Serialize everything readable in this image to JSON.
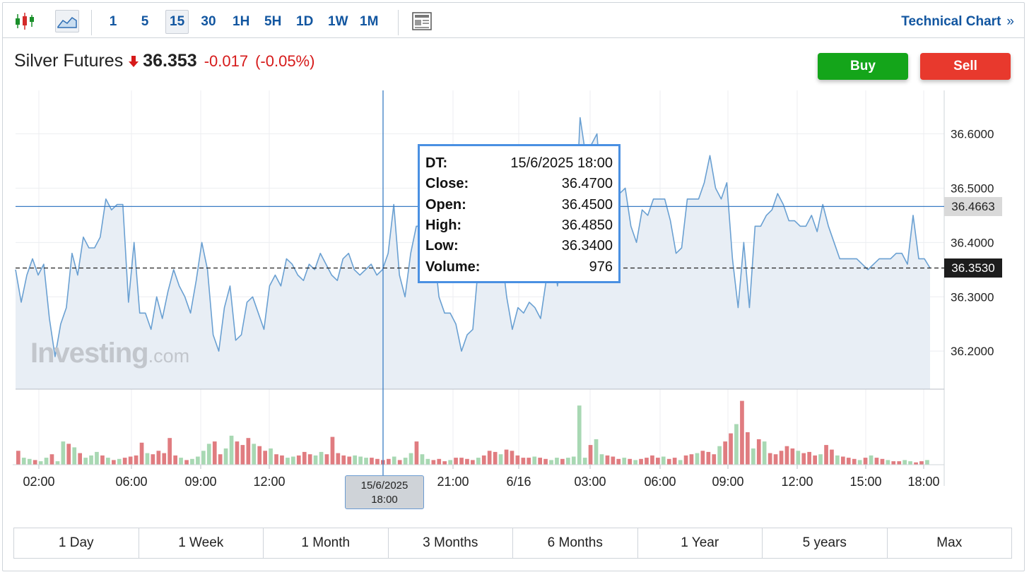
{
  "toolbar": {
    "intervals": [
      "1",
      "5",
      "15",
      "30",
      "1H",
      "5H",
      "1D",
      "1W",
      "1M"
    ],
    "active_interval": "15",
    "technical_chart_label": "Technical Chart",
    "technical_chart_chevron": "»"
  },
  "quote": {
    "name": "Silver Futures",
    "price": "36.353",
    "change": "-0.017",
    "change_pct": "(-0.05%)",
    "direction": "down"
  },
  "actions": {
    "buy_label": "Buy",
    "sell_label": "Sell"
  },
  "colors": {
    "accent": "#1256a0",
    "up": "#14a51a",
    "down": "#e8392d",
    "line": "#6aa0d2",
    "area": "#e8eef5",
    "vol_up": "#a8d8b3",
    "vol_down": "#e07c80"
  },
  "watermark": {
    "brand": "Investing",
    "suffix": ".com"
  },
  "tooltip": {
    "rows": [
      {
        "key": "DT:",
        "value": "15/6/2025 18:00"
      },
      {
        "key": "Close:",
        "value": "36.4700"
      },
      {
        "key": "Open:",
        "value": "36.4500"
      },
      {
        "key": "High:",
        "value": "36.4850"
      },
      {
        "key": "Low:",
        "value": "36.3400"
      },
      {
        "key": "Volume:",
        "value": "976"
      }
    ]
  },
  "crosshair": {
    "date": "15/6/2025",
    "time": "18:00",
    "price_tag": "36.4663",
    "price": 36.4663
  },
  "last_price": {
    "tag": "36.3530",
    "price": 36.353
  },
  "range_buttons": [
    "1 Day",
    "1 Week",
    "1 Month",
    "3 Months",
    "6 Months",
    "1 Year",
    "5 years",
    "Max"
  ],
  "chart_data": {
    "type": "area",
    "y_ticks": [
      "36.6000",
      "36.5000",
      "36.4000",
      "36.3000",
      "36.2000"
    ],
    "x_ticks": [
      "02:00",
      "06:00",
      "09:00",
      "12:00",
      "21:00",
      "6/16",
      "03:00",
      "06:00",
      "09:00",
      "12:00",
      "15:00",
      "18:00"
    ],
    "ylim": [
      36.13,
      36.68
    ],
    "grid": true,
    "series": [
      {
        "values": [
          36.35,
          36.29,
          36.34,
          36.37,
          36.34,
          36.36,
          36.26,
          36.19,
          36.25,
          36.28,
          36.38,
          36.34,
          36.41,
          36.39,
          36.39,
          36.41,
          36.48,
          36.46,
          36.47,
          36.47,
          36.29,
          36.4,
          36.27,
          36.27,
          36.24,
          36.3,
          36.26,
          36.31,
          36.35,
          36.32,
          36.3,
          36.27,
          36.33,
          36.4,
          36.35,
          36.23,
          36.2,
          36.28,
          36.32,
          36.22,
          36.23,
          36.29,
          36.3,
          36.27,
          36.24,
          36.32,
          36.34,
          36.32,
          36.37,
          36.36,
          36.34,
          36.33,
          36.36,
          36.35,
          36.38,
          36.36,
          36.34,
          36.33,
          36.37,
          36.38,
          36.35,
          36.34,
          36.35,
          36.36,
          36.34,
          36.35,
          36.38,
          36.47,
          36.34,
          36.3,
          36.38,
          36.43,
          36.43,
          36.41,
          36.4,
          36.3,
          36.27,
          36.27,
          36.25,
          36.2,
          36.23,
          36.24,
          36.36,
          36.42,
          36.39,
          36.4,
          36.39,
          36.3,
          36.24,
          36.28,
          36.27,
          36.29,
          36.28,
          36.26,
          36.33,
          36.4,
          36.32,
          36.39,
          36.37,
          36.4,
          36.63,
          36.56,
          36.58,
          36.6,
          36.46,
          36.53,
          36.5,
          36.49,
          36.5,
          36.43,
          36.4,
          36.46,
          36.45,
          36.48,
          36.48,
          36.48,
          36.44,
          36.38,
          36.39,
          36.48,
          36.48,
          36.48,
          36.51,
          36.56,
          36.5,
          36.48,
          36.51,
          36.37,
          36.28,
          36.4,
          36.28,
          36.43,
          36.43,
          36.45,
          36.46,
          36.49,
          36.47,
          36.44,
          36.44,
          36.43,
          36.43,
          36.45,
          36.42,
          36.47,
          36.43,
          36.4,
          36.37,
          36.37,
          36.37,
          36.37,
          36.36,
          36.35,
          36.36,
          36.37,
          36.37,
          36.37,
          36.38,
          36.38,
          36.36,
          36.45,
          36.37,
          36.37,
          36.353
        ]
      },
      {
        "name": "Volume",
        "values": [
          120,
          60,
          50,
          40,
          30,
          60,
          90,
          30,
          200,
          180,
          150,
          100,
          60,
          80,
          110,
          80,
          60,
          40,
          50,
          60,
          70,
          80,
          190,
          100,
          90,
          120,
          100,
          230,
          80,
          60,
          40,
          50,
          70,
          120,
          180,
          200,
          90,
          140,
          250,
          200,
          170,
          230,
          180,
          160,
          120,
          140,
          90,
          80,
          60,
          70,
          80,
          110,
          90,
          80,
          110,
          90,
          240,
          100,
          80,
          70,
          80,
          70,
          60,
          60,
          50,
          40,
          50,
          70,
          40,
          60,
          100,
          200,
          90,
          50,
          40,
          50,
          30,
          40,
          60,
          60,
          50,
          40,
          60,
          80,
          120,
          110,
          90,
          130,
          120,
          80,
          60,
          60,
          70,
          60,
          50,
          40,
          60,
          50,
          60,
          70,
          510,
          60,
          170,
          220,
          90,
          80,
          70,
          50,
          60,
          50,
          40,
          50,
          60,
          80,
          60,
          70,
          50,
          60,
          40,
          80,
          90,
          100,
          120,
          110,
          90,
          160,
          200,
          270,
          350,
          550,
          280,
          140,
          220,
          200,
          100,
          90,
          120,
          160,
          140,
          120,
          100,
          110,
          80,
          90,
          170,
          130,
          80,
          70,
          60,
          50,
          40,
          60,
          80,
          60,
          50,
          40,
          30,
          30,
          40,
          30,
          20,
          30,
          40
        ]
      }
    ],
    "volume_colors": [
      "d",
      "u",
      "u",
      "d",
      "u",
      "u",
      "d",
      "u",
      "u",
      "d",
      "u",
      "d",
      "u",
      "u",
      "u",
      "d",
      "u",
      "d",
      "u",
      "d",
      "d",
      "d",
      "d",
      "u",
      "d",
      "d",
      "d",
      "d",
      "d",
      "u",
      "d",
      "u",
      "u",
      "u",
      "u",
      "d",
      "d",
      "u",
      "u",
      "d",
      "d",
      "d",
      "u",
      "d",
      "d",
      "u",
      "d",
      "d",
      "u",
      "u",
      "d",
      "d",
      "d",
      "u",
      "u",
      "d",
      "d",
      "d",
      "d",
      "d",
      "u",
      "u",
      "u",
      "d",
      "d",
      "d",
      "d",
      "u",
      "d",
      "u",
      "u",
      "d",
      "u",
      "u",
      "d",
      "d",
      "d",
      "u",
      "d",
      "d",
      "d",
      "d",
      "u",
      "d",
      "d",
      "d",
      "u",
      "d",
      "d",
      "d",
      "d",
      "d",
      "u",
      "d",
      "d",
      "u",
      "u",
      "d",
      "u",
      "u",
      "u",
      "u",
      "d",
      "u",
      "u",
      "d",
      "d",
      "d",
      "u",
      "d",
      "u",
      "d",
      "d",
      "d",
      "d",
      "u",
      "d",
      "d",
      "u",
      "d",
      "d",
      "u",
      "d",
      "d",
      "d",
      "u",
      "d",
      "d",
      "u",
      "d",
      "d",
      "u",
      "d",
      "u",
      "d",
      "d",
      "d",
      "d",
      "d",
      "u",
      "d",
      "d",
      "d",
      "u",
      "d",
      "d",
      "u",
      "d",
      "d",
      "d",
      "u",
      "d",
      "u",
      "d",
      "d",
      "u",
      "d",
      "d",
      "u",
      "u",
      "d",
      "d",
      "u",
      "d",
      "d",
      "d",
      "u",
      "d",
      "d"
    ]
  }
}
